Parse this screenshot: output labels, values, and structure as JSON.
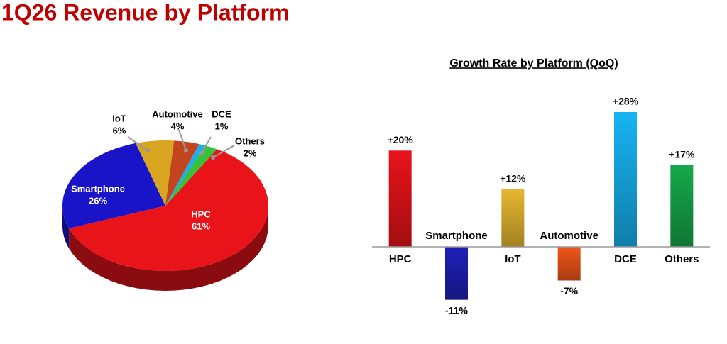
{
  "title": "1Q26 Revenue by Platform",
  "chart_data": [
    {
      "type": "pie",
      "categories": [
        "HPC",
        "Smartphone",
        "IoT",
        "Automotive",
        "DCE",
        "Others"
      ],
      "values": [
        61,
        26,
        6,
        4,
        1,
        2
      ],
      "value_labels": [
        "61%",
        "26%",
        "6%",
        "4%",
        "1%",
        "2%"
      ],
      "colors": [
        "#e8141a",
        "#1a14c8",
        "#d9a520",
        "#c2451d",
        "#1eaef0",
        "#36c23a"
      ]
    },
    {
      "type": "bar",
      "title": "Growth Rate by Platform (QoQ)",
      "categories": [
        "HPC",
        "Smartphone",
        "IoT",
        "Automotive",
        "DCE",
        "Others"
      ],
      "values": [
        20,
        -11,
        12,
        -7,
        28,
        17
      ],
      "value_labels": [
        "+20%",
        "-11%",
        "+12%",
        "-7%",
        "+28%",
        "+17%"
      ],
      "colors": [
        "#e8141a",
        "#1f1fb8",
        "#e6b830",
        "#f0561a",
        "#17b4f2",
        "#16a84a"
      ]
    }
  ]
}
